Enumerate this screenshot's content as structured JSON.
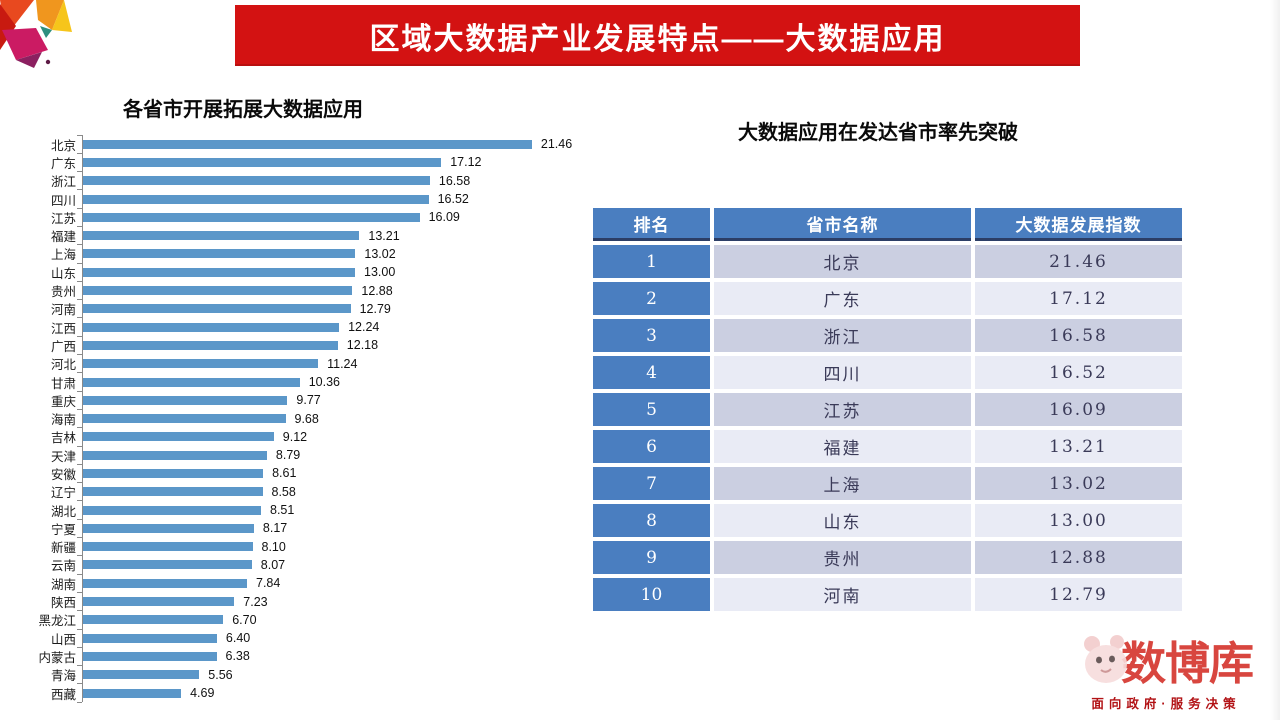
{
  "slide": {
    "banner": {
      "title": "区域大数据产业发展特点——大数据应用"
    },
    "left_chart": {
      "title": "各省市开展拓展大数据应用"
    },
    "right_panel": {
      "title": "大数据应用在发达省市率先突破",
      "table": {
        "headers": [
          "排名",
          "省市名称",
          "大数据发展指数"
        ],
        "rows": [
          {
            "rank": "1",
            "province": "北京",
            "index": "21.46"
          },
          {
            "rank": "2",
            "province": "广东",
            "index": "17.12"
          },
          {
            "rank": "3",
            "province": "浙江",
            "index": "16.58"
          },
          {
            "rank": "4",
            "province": "四川",
            "index": "16.52"
          },
          {
            "rank": "5",
            "province": "江苏",
            "index": "16.09"
          },
          {
            "rank": "6",
            "province": "福建",
            "index": "13.21"
          },
          {
            "rank": "7",
            "province": "上海",
            "index": "13.02"
          },
          {
            "rank": "8",
            "province": "山东",
            "index": "13.00"
          },
          {
            "rank": "9",
            "province": "贵州",
            "index": "12.88"
          },
          {
            "rank": "10",
            "province": "河南",
            "index": "12.79"
          }
        ]
      }
    },
    "footer_logo": {
      "name": "数博库",
      "slogan": "面向政府·服务决策"
    }
  },
  "chart_data": {
    "type": "bar",
    "orientation": "horizontal",
    "title": "各省市开展拓展大数据应用",
    "xlabel": "",
    "ylabel": "",
    "xlim": [
      0,
      22
    ],
    "grid": false,
    "value_labels": true,
    "categories": [
      "北京",
      "广东",
      "浙江",
      "四川",
      "江苏",
      "福建",
      "上海",
      "山东",
      "贵州",
      "河南",
      "江西",
      "广西",
      "河北",
      "甘肃",
      "重庆",
      "海南",
      "吉林",
      "天津",
      "安徽",
      "辽宁",
      "湖北",
      "宁夏",
      "新疆",
      "云南",
      "湖南",
      "陕西",
      "黑龙江",
      "山西",
      "内蒙古",
      "青海",
      "西藏"
    ],
    "values": [
      21.46,
      17.12,
      16.58,
      16.52,
      16.09,
      13.21,
      13.02,
      13.0,
      12.88,
      12.79,
      12.24,
      12.18,
      11.24,
      10.36,
      9.77,
      9.68,
      9.12,
      8.79,
      8.61,
      8.58,
      8.51,
      8.17,
      8.1,
      8.07,
      7.84,
      7.23,
      6.7,
      6.4,
      6.38,
      5.56,
      4.69
    ]
  },
  "colors": {
    "banner_red": "#d31212",
    "bar_blue": "#5b97c9",
    "table_header_blue": "#4a7ec0",
    "row_odd": "#cbcfe1",
    "row_even": "#e9ebf5",
    "logo_red": "#d2261e"
  }
}
